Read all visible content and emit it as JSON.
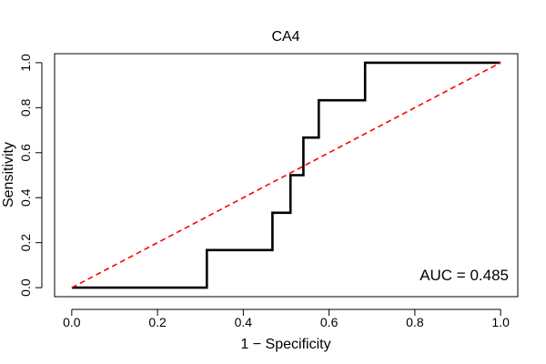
{
  "chart_data": {
    "type": "line",
    "title": "CA4",
    "xlabel": "1 − Specificity",
    "ylabel": "Sensitivity",
    "xlim": [
      -0.04,
      1.04
    ],
    "ylim": [
      -0.04,
      1.04
    ],
    "xticks": [
      0,
      0.2,
      0.4,
      0.6,
      0.8,
      1
    ],
    "xtick_labels": [
      "0.0",
      "0.2",
      "0.4",
      "0.6",
      "0.8",
      "1.0"
    ],
    "yticks": [
      0,
      0.2,
      0.4,
      0.6,
      0.8,
      1
    ],
    "ytick_labels": [
      "0.0",
      "0.2",
      "0.4",
      "0.6",
      "0.8",
      "1.0"
    ],
    "grid": false,
    "series": [
      {
        "color": "#000000",
        "line_style": "solid",
        "x": [
          0.0,
          0.315,
          0.315,
          0.468,
          0.468,
          0.51,
          0.51,
          0.54,
          0.54,
          0.576,
          0.576,
          0.684,
          0.684,
          1.0
        ],
        "y": [
          0.0,
          0.0,
          0.167,
          0.167,
          0.333,
          0.333,
          0.5,
          0.5,
          0.667,
          0.667,
          0.833,
          0.833,
          1.0,
          1.0
        ]
      },
      {
        "color": "#ff0000",
        "line_style": "dashed",
        "x": [
          0.0,
          1.0
        ],
        "y": [
          0.0,
          1.0
        ]
      }
    ],
    "annotation": "AUC = 0.485"
  }
}
